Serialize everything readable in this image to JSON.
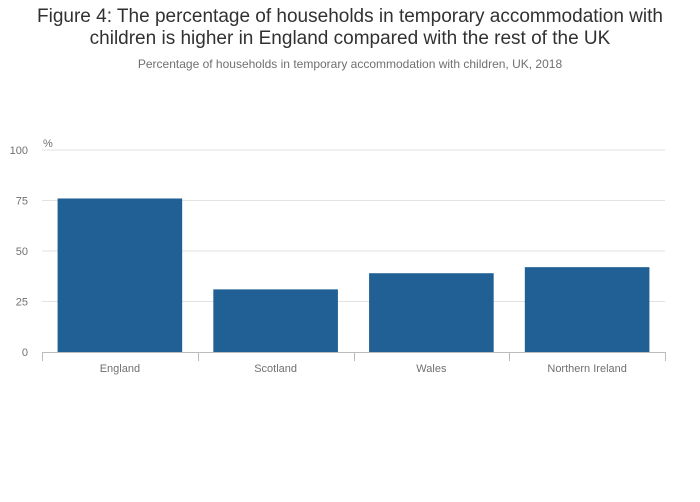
{
  "chart_data": {
    "type": "bar",
    "title_lines": [
      "Figure 4: The percentage of households in temporary accommodation with",
      "children is higher in England compared with the rest of the UK"
    ],
    "subtitle": "Percentage of households in temporary accommodation with children, UK, 2018",
    "ylabel": "%",
    "xlabel": "",
    "categories": [
      "England",
      "Scotland",
      "Wales",
      "Northern Ireland"
    ],
    "values": [
      76,
      31,
      39,
      42
    ],
    "ylim": [
      0,
      100
    ],
    "yticks": [
      0,
      25,
      50,
      75,
      100
    ],
    "grid": true,
    "colors": {
      "bar": "#206095",
      "grid": "#e2e2e3",
      "axis": "#bcbcbd",
      "text": "#707071",
      "title": "#323132"
    }
  }
}
